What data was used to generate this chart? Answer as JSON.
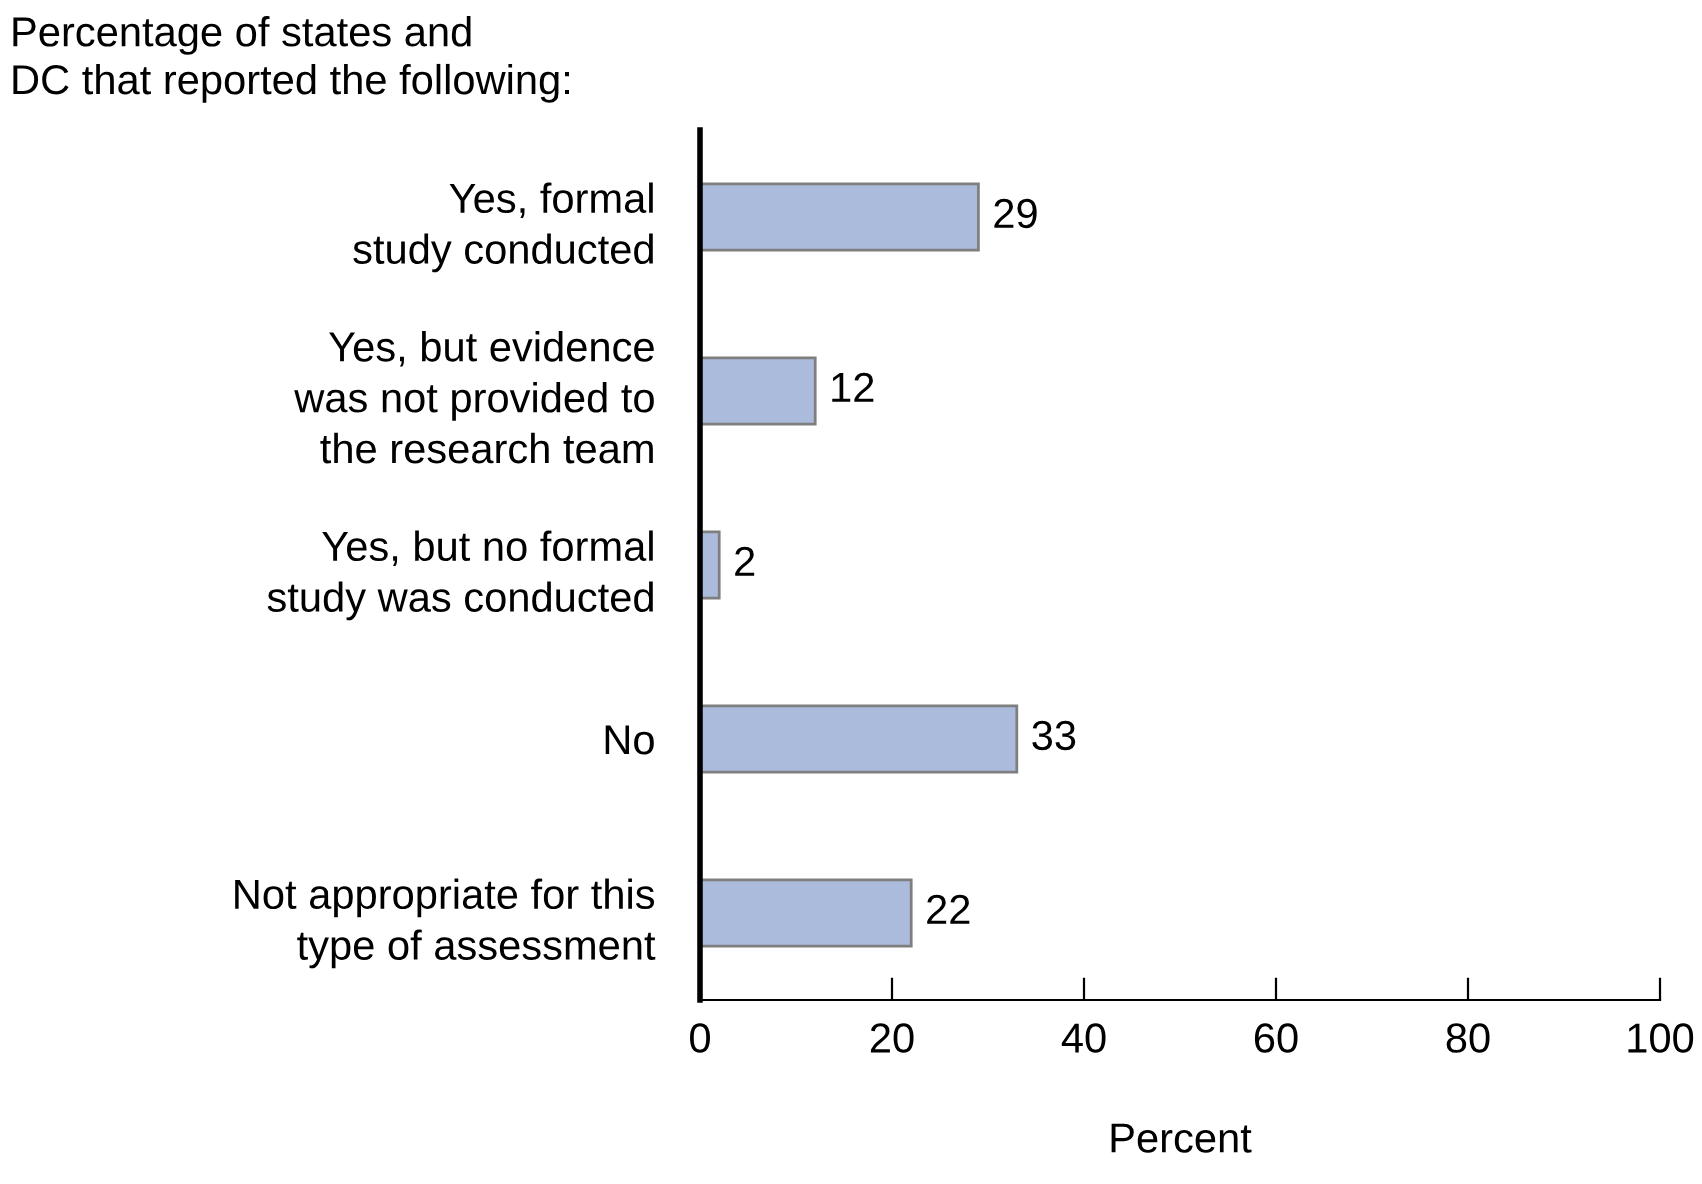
{
  "chart_data": {
    "type": "bar",
    "orientation": "horizontal",
    "title": "Percentage of states and\nDC that reported the following:",
    "xlabel": "Percent",
    "categories": [
      "Yes, formal\nstudy conducted",
      "Yes, but evidence\nwas not provided to\nthe research team",
      "Yes, but no formal\nstudy was conducted",
      "No",
      "Not appropriate for this\ntype of assessment"
    ],
    "values": [
      29,
      12,
      2,
      33,
      22
    ],
    "color": "#abbbdb",
    "data_labels": true,
    "xlim": [
      0,
      100
    ],
    "xticks": [
      0,
      20,
      40,
      60,
      80,
      100
    ],
    "grid": false,
    "legend": false
  }
}
